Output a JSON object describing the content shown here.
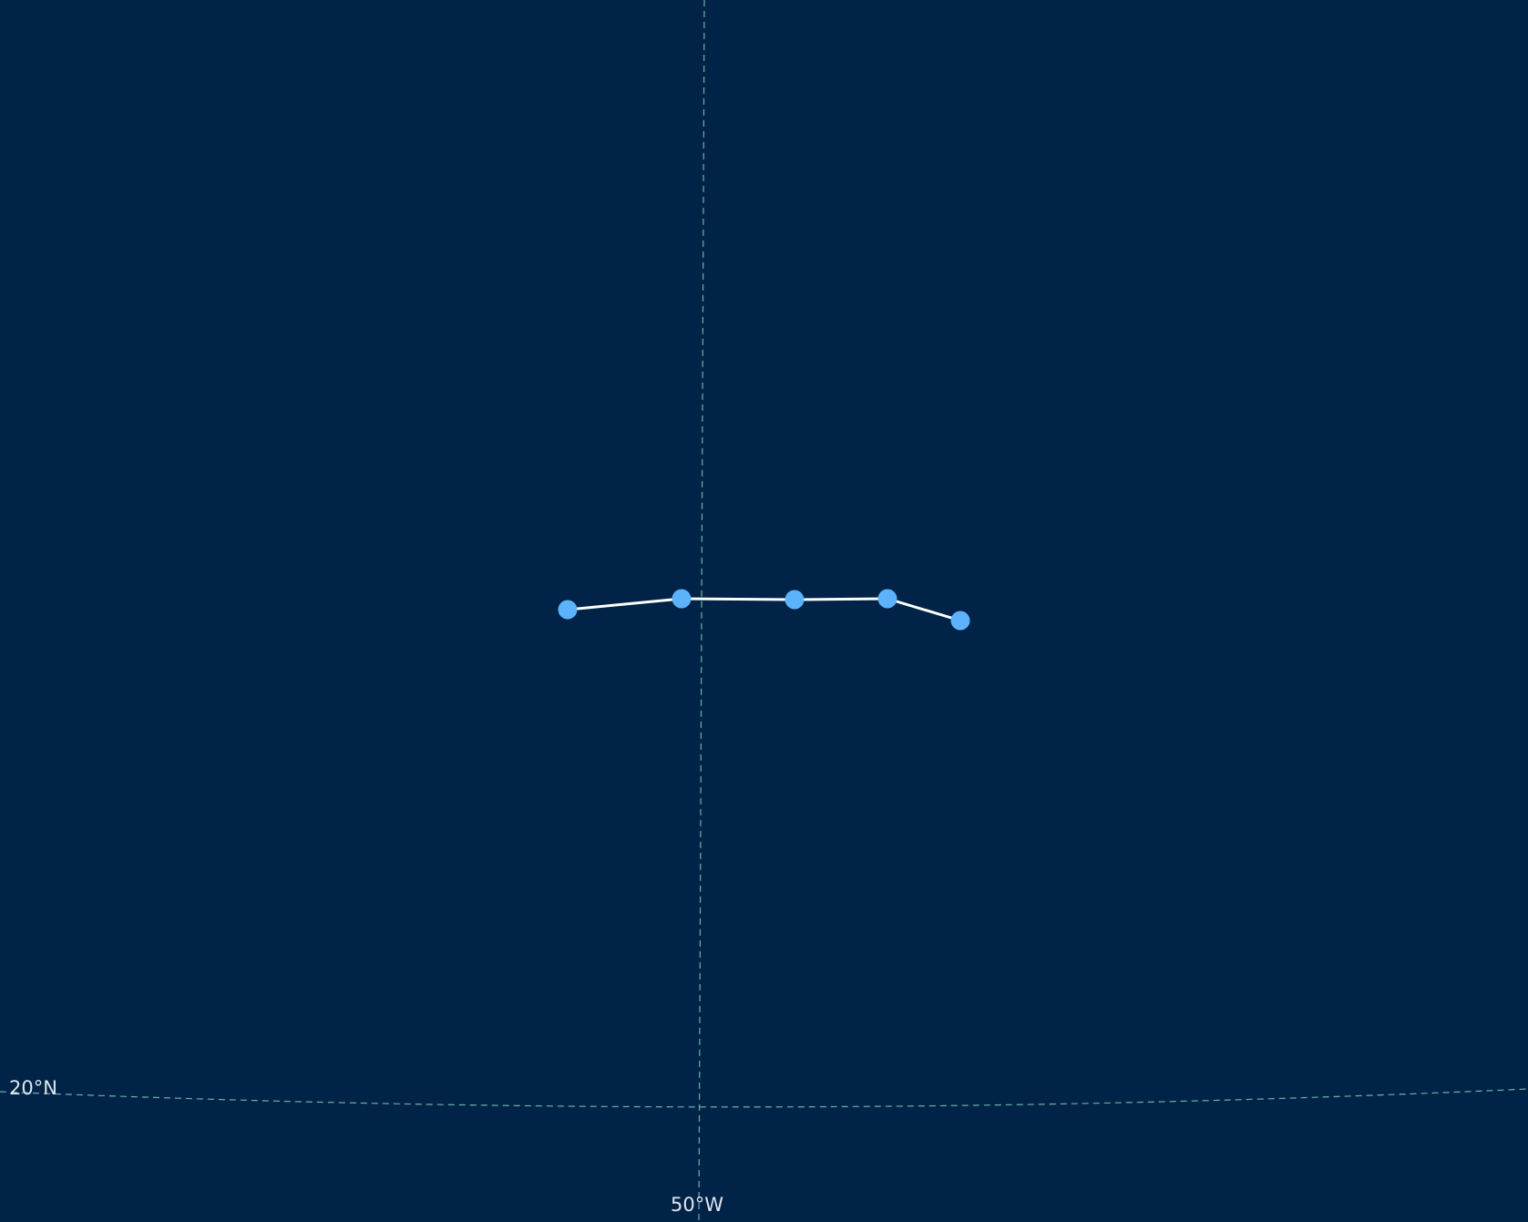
{
  "map": {
    "background_color": "#002347",
    "graticule_color": "#6bb5a2",
    "track_line_color": "#ffffff",
    "track_point_color": "#5db3fb",
    "graticule": {
      "latitude_label": "20°N",
      "longitude_label": "50°W"
    },
    "track_points": [
      {
        "id": "pt-1"
      },
      {
        "id": "pt-2"
      },
      {
        "id": "pt-3"
      },
      {
        "id": "pt-4"
      },
      {
        "id": "pt-5"
      }
    ]
  }
}
